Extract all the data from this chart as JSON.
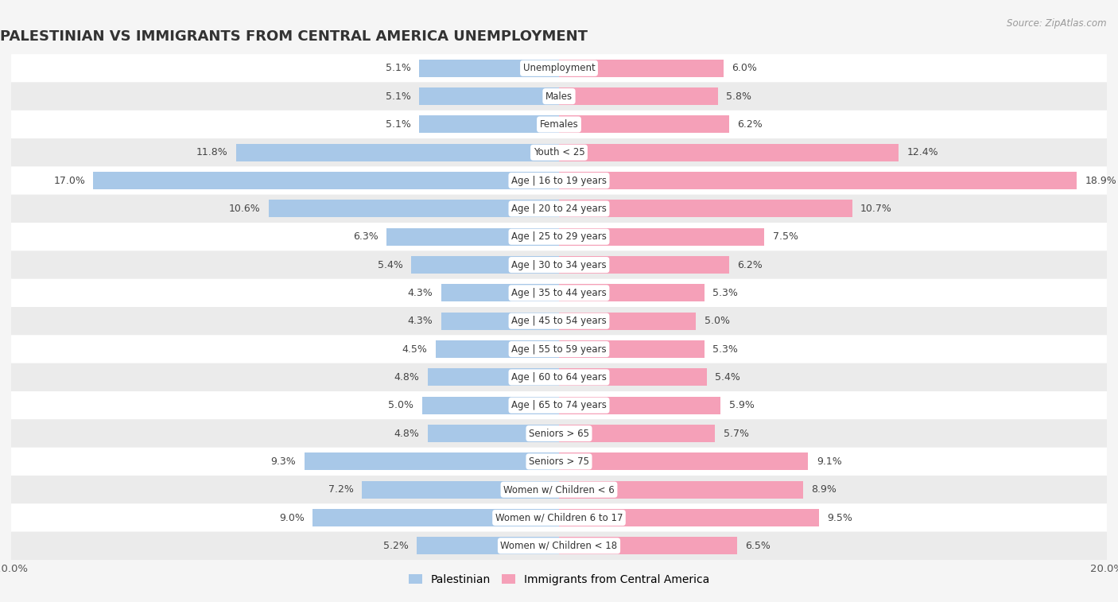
{
  "title": "PALESTINIAN VS IMMIGRANTS FROM CENTRAL AMERICA UNEMPLOYMENT",
  "source": "Source: ZipAtlas.com",
  "categories": [
    "Unemployment",
    "Males",
    "Females",
    "Youth < 25",
    "Age | 16 to 19 years",
    "Age | 20 to 24 years",
    "Age | 25 to 29 years",
    "Age | 30 to 34 years",
    "Age | 35 to 44 years",
    "Age | 45 to 54 years",
    "Age | 55 to 59 years",
    "Age | 60 to 64 years",
    "Age | 65 to 74 years",
    "Seniors > 65",
    "Seniors > 75",
    "Women w/ Children < 6",
    "Women w/ Children 6 to 17",
    "Women w/ Children < 18"
  ],
  "palestinian": [
    5.1,
    5.1,
    5.1,
    11.8,
    17.0,
    10.6,
    6.3,
    5.4,
    4.3,
    4.3,
    4.5,
    4.8,
    5.0,
    4.8,
    9.3,
    7.2,
    9.0,
    5.2
  ],
  "immigrants": [
    6.0,
    5.8,
    6.2,
    12.4,
    18.9,
    10.7,
    7.5,
    6.2,
    5.3,
    5.0,
    5.3,
    5.4,
    5.9,
    5.7,
    9.1,
    8.9,
    9.5,
    6.5
  ],
  "palestinian_color": "#a8c8e8",
  "immigrants_color": "#f5a0b8",
  "bg_color": "#f5f5f5",
  "row_bg_even": "#ffffff",
  "row_bg_odd": "#ebebeb",
  "max_val": 20.0
}
